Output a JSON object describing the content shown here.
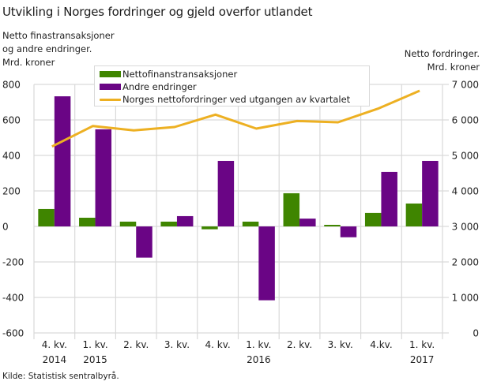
{
  "chart_data": {
    "type": "bar",
    "title": "Utvikling i Norges fordringer og gjeld overfor utlandet",
    "ylabel_left": [
      "Netto finastransaksjoner",
      "og andre endringer.",
      "Mrd. kroner"
    ],
    "ylabel_right": [
      "Netto fordringer.",
      "Mrd. kroner"
    ],
    "categories": [
      [
        "4. kv.",
        "2014"
      ],
      [
        "1. kv.",
        "2015"
      ],
      [
        "2. kv.",
        ""
      ],
      [
        "3. kv.",
        ""
      ],
      [
        "4. kv.",
        ""
      ],
      [
        "1. kv.",
        "2016"
      ],
      [
        "2. kv.",
        ""
      ],
      [
        "3. kv.",
        ""
      ],
      [
        "4.kv.",
        ""
      ],
      [
        "1. kv.",
        "2017"
      ]
    ],
    "series": [
      {
        "name": "Nettofinanstransaksjoner",
        "type": "bar",
        "axis": "left",
        "color": "#3f8500",
        "values": [
          98,
          49,
          27,
          27,
          -16,
          27,
          187,
          9,
          76,
          129
        ]
      },
      {
        "name": "Andre endringer",
        "type": "bar",
        "axis": "left",
        "color": "#6a0585",
        "values": [
          733,
          547,
          -176,
          58,
          369,
          -416,
          44,
          -61,
          307,
          369
        ]
      },
      {
        "name": "Norges nettofordringer ved utgangen av kvartalet",
        "type": "line",
        "axis": "right",
        "color": "#edb022",
        "values": [
          5251,
          5829,
          5704,
          5800,
          6148,
          5756,
          5970,
          5933,
          6326,
          6822
        ]
      }
    ],
    "ylim_left": [
      -600,
      800
    ],
    "yticks_left": [
      800,
      600,
      400,
      200,
      0,
      -200,
      -400,
      -600
    ],
    "ytick_labels_left": [
      "800",
      "600",
      "400",
      "200",
      "0",
      "-200",
      "-400",
      "-600"
    ],
    "ylim_right": [
      0,
      7000
    ],
    "yticks_right": [
      7000,
      6000,
      5000,
      4000,
      3000,
      2000,
      1000,
      0
    ],
    "ytick_labels_right": [
      "7 000",
      "6 000",
      "5 000",
      "4 000",
      "3 000",
      "2 000",
      "1 000",
      "0"
    ],
    "grid": true,
    "legend_position": "top-inside",
    "source": "Kilde: Statistisk sentralbyrå."
  },
  "legend": {
    "items": [
      {
        "label": "Nettofinanstransaksjoner",
        "kind": "bar",
        "color": "#3f8500"
      },
      {
        "label": "Andre endringer",
        "kind": "bar",
        "color": "#6a0585"
      },
      {
        "label": "Norges nettofordringer ved utgangen av kvartalet",
        "kind": "line",
        "color": "#edb022"
      }
    ]
  },
  "colors": {
    "grid": "#d9d9d9",
    "text": "#222222"
  }
}
